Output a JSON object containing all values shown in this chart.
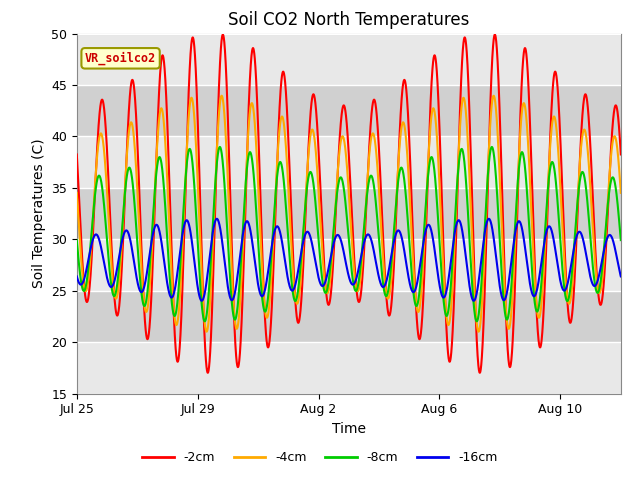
{
  "title": "Soil CO2 North Temperatures",
  "xlabel": "Time",
  "ylabel": "Soil Temperatures (C)",
  "ylim": [
    15,
    50
  ],
  "yticks": [
    15,
    20,
    25,
    30,
    35,
    40,
    45,
    50
  ],
  "plot_bg_color": "#dcdcdc",
  "fig_bg_color": "#ffffff",
  "label_box_text": "VR_soilco2",
  "label_box_bg": "#ffffcc",
  "label_box_border": "#999900",
  "lines": {
    "-2cm": {
      "color": "#ff0000",
      "lw": 1.5
    },
    "-4cm": {
      "color": "#ffaa00",
      "lw": 1.5
    },
    "-8cm": {
      "color": "#00cc00",
      "lw": 1.5
    },
    "-16cm": {
      "color": "#0000ee",
      "lw": 1.5
    }
  },
  "x_tick_labels": [
    "Jul 25",
    "Jul 29",
    "Aug 2",
    "Aug 6",
    "Aug 10"
  ],
  "x_tick_days": [
    0,
    4,
    8,
    12,
    16
  ],
  "total_days": 18,
  "samples_per_day": 240,
  "peak_hour": 14.0,
  "series": {
    "-2cm": {
      "mean": 33.5,
      "amp_base": 13.0,
      "phase_shift": 0.0,
      "amp_mod_amp": 3.5,
      "amp_mod_period": 9.0,
      "amp_mod_phase": 0.0,
      "mean_mod_amp": 0.0,
      "trough_floor": 19.0
    },
    "-4cm": {
      "mean": 32.5,
      "amp_base": 9.5,
      "phase_shift": 0.04,
      "amp_mod_amp": 2.0,
      "amp_mod_period": 9.0,
      "amp_mod_phase": 0.0,
      "mean_mod_amp": 0.0,
      "trough_floor": 22.0
    },
    "-8cm": {
      "mean": 30.5,
      "amp_base": 7.0,
      "phase_shift": 0.1,
      "amp_mod_amp": 1.5,
      "amp_mod_period": 9.0,
      "amp_mod_phase": 0.0,
      "mean_mod_amp": 0.0,
      "trough_floor": 23.0
    },
    "-16cm": {
      "mean": 28.0,
      "amp_base": 3.2,
      "phase_shift": 0.2,
      "amp_mod_amp": 0.8,
      "amp_mod_period": 9.0,
      "amp_mod_phase": 0.0,
      "mean_mod_amp": 0.0,
      "trough_floor": 24.5
    }
  }
}
